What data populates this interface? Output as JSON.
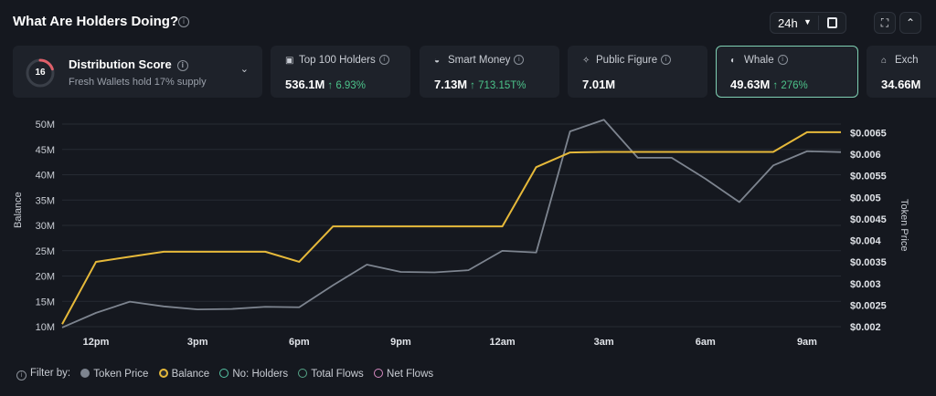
{
  "header": {
    "title": "What Are Holders Doing?",
    "timeframe": "24h"
  },
  "distribution": {
    "score": "16",
    "title": "Distribution Score",
    "subtitle": "Fresh Wallets hold 17% supply"
  },
  "cards": [
    {
      "title": "Top 100 Holders",
      "value": "536.1M",
      "delta": "↑ 6.93%",
      "icon": "wallet-icon"
    },
    {
      "title": "Smart Money",
      "value": "7.13M",
      "delta": "↑ 713.15T%",
      "icon": "brain-icon"
    },
    {
      "title": "Public Figure",
      "value": "7.01M",
      "delta": "",
      "icon": "star-icon"
    },
    {
      "title": "Whale",
      "value": "49.63M",
      "delta": "↑ 276%",
      "icon": "whale-icon",
      "active": true
    },
    {
      "title": "Exch",
      "value": "34.66M",
      "delta": "",
      "icon": "bank-icon"
    }
  ],
  "filters": {
    "label": "Filter by:",
    "items": [
      "Token Price",
      "Balance",
      "No: Holders",
      "Total Flows",
      "Net Flows"
    ]
  },
  "colors": {
    "balance": "#e6b93a",
    "price": "#7d848f",
    "grid": "#262b33",
    "positive": "#4cc38a",
    "active_border": "#7fd0b3"
  },
  "chart_data": {
    "type": "line",
    "x": [
      "11am",
      "12pm",
      "1pm",
      "2pm",
      "3pm",
      "4pm",
      "5pm",
      "6pm",
      "7pm",
      "8pm",
      "9pm",
      "10pm",
      "11pm",
      "12am",
      "1am",
      "2am",
      "3am",
      "4am",
      "5am",
      "6am",
      "7am",
      "8am",
      "9am",
      "10am"
    ],
    "x_ticks": [
      "12pm",
      "3pm",
      "6pm",
      "9pm",
      "12am",
      "3am",
      "6am",
      "9am"
    ],
    "ylabel": "Balance",
    "ylabel_right": "Token Price",
    "ylim": [
      10,
      50
    ],
    "y_ticks": [
      "10M",
      "15M",
      "20M",
      "25M",
      "30M",
      "35M",
      "40M",
      "45M",
      "50M"
    ],
    "ylim_right": [
      0.002,
      0.0067
    ],
    "y_ticks_right": [
      "$0.002",
      "$0.0025",
      "$0.003",
      "$0.0035",
      "$0.004",
      "$0.0045",
      "$0.005",
      "$0.0055",
      "$0.006",
      "$0.0065"
    ],
    "series": [
      {
        "name": "Balance",
        "axis": "left",
        "values": [
          10.5,
          22.8,
          23.8,
          24.8,
          24.8,
          24.8,
          24.8,
          22.8,
          29.8,
          29.8,
          29.8,
          29.8,
          29.8,
          29.8,
          41.5,
          44.4,
          44.5,
          44.5,
          44.5,
          44.5,
          44.5,
          44.5,
          48.4,
          48.4
        ]
      },
      {
        "name": "Token Price",
        "axis": "right",
        "values": [
          0.00198,
          0.00232,
          0.00258,
          0.00247,
          0.0024,
          0.00241,
          0.00246,
          0.00245,
          0.00296,
          0.00344,
          0.00327,
          0.00326,
          0.00331,
          0.00376,
          0.00372,
          0.00653,
          0.0068,
          0.00592,
          0.00592,
          0.00543,
          0.00489,
          0.00574,
          0.00607,
          0.00605
        ]
      }
    ],
    "grid": true
  }
}
